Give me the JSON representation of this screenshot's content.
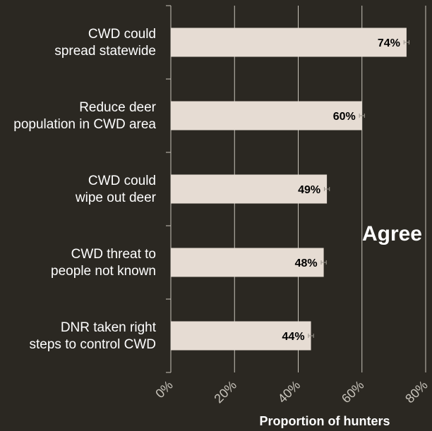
{
  "colors": {
    "background": "#2b2822",
    "bar": "#e6dcd3",
    "grid": "#c8c4bb",
    "text": "#ffffff"
  },
  "chart_data": {
    "type": "bar",
    "orientation": "horizontal",
    "categories": [
      [
        "CWD could",
        "spread statewide"
      ],
      [
        "Reduce deer",
        "population in CWD area"
      ],
      [
        "CWD could",
        "wipe out deer"
      ],
      [
        "CWD threat to",
        "people not known"
      ],
      [
        "DNR taken right",
        "steps to control CWD"
      ]
    ],
    "values": [
      74,
      60,
      49,
      48,
      44
    ],
    "error": [
      0.8,
      0.8,
      0.8,
      0.8,
      0.8
    ],
    "data_labels": [
      "74%",
      "60%",
      "49%",
      "48%",
      "44%"
    ],
    "xlim": [
      0,
      80
    ],
    "xticks": [
      0,
      20,
      40,
      60,
      80
    ],
    "xtick_labels": [
      "0%",
      "20%",
      "40%",
      "60%",
      "80%"
    ],
    "xlabel": "Proportion of hunters",
    "ylabel": "",
    "title": "",
    "grid": true,
    "annotation": "Agree"
  }
}
